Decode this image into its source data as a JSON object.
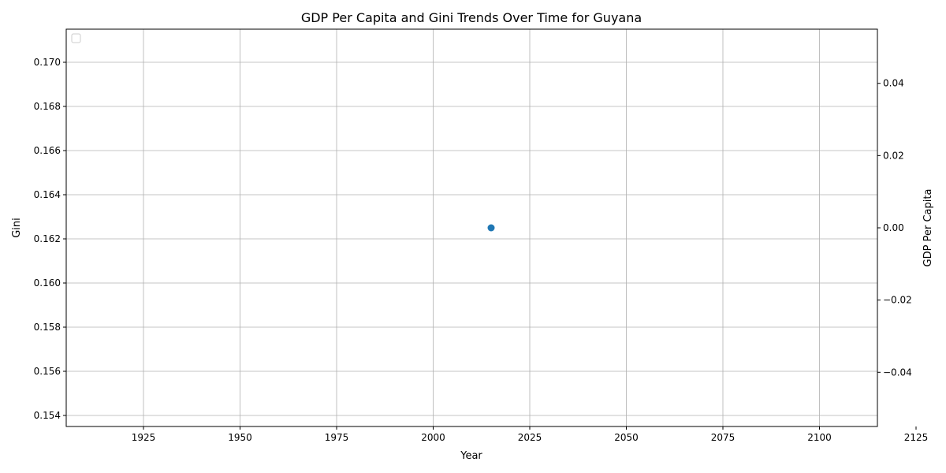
{
  "chart_data": {
    "type": "scatter",
    "title": "GDP Per Capita and Gini Trends Over Time for Guyana",
    "xlabel": "Year",
    "ylabel_left": "Gini",
    "ylabel_right": "GDP Per Capita",
    "xlim": [
      1905,
      2115
    ],
    "ylim_left": [
      0.1535,
      0.1715
    ],
    "ylim_right": [
      -0.055,
      0.055
    ],
    "x_ticks": [
      1925,
      1950,
      1975,
      2000,
      2025,
      2050,
      2075,
      2100,
      2125
    ],
    "x_tick_labels": [
      "1925",
      "1950",
      "1975",
      "2000",
      "2025",
      "2050",
      "2075",
      "2100",
      "2125"
    ],
    "y_left_ticks": [
      0.154,
      0.156,
      0.158,
      0.16,
      0.162,
      0.164,
      0.166,
      0.168,
      0.17
    ],
    "y_left_tick_labels": [
      "0.154",
      "0.156",
      "0.158",
      "0.160",
      "0.162",
      "0.164",
      "0.166",
      "0.168",
      "0.170"
    ],
    "y_right_ticks": [
      -0.04,
      -0.02,
      0.0,
      0.02,
      0.04
    ],
    "y_right_tick_labels": [
      "−0.04",
      "−0.02",
      "0.00",
      "0.02",
      "0.04"
    ],
    "grid": true,
    "legend": {
      "location": "upper-left",
      "entries": []
    },
    "series": [
      {
        "axis": "left",
        "color": "#1f77b4",
        "marker": "circle",
        "points": [
          {
            "x": 2015,
            "y": 0.1625
          }
        ]
      },
      {
        "axis": "right",
        "color": "#2ca02c",
        "marker": "none",
        "points": []
      }
    ],
    "colors": {
      "gini_label": "#1f77b4",
      "gdp_label": "#2ca02c",
      "grid": "#b0b0b0",
      "axes": "#000000"
    }
  }
}
